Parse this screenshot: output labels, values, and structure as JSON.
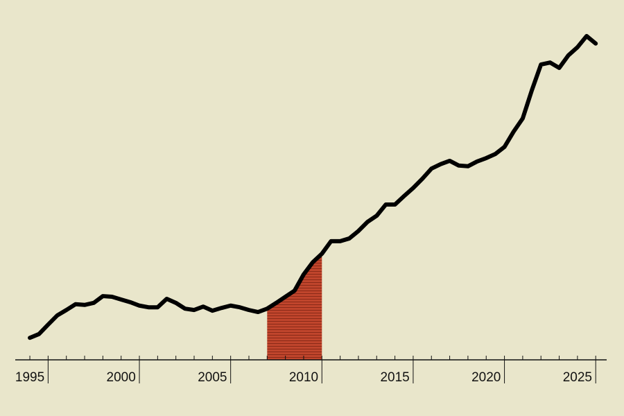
{
  "chart_data": {
    "type": "line",
    "x": [
      1995.0,
      1995.5,
      1996.0,
      1996.5,
      1997.0,
      1997.5,
      1998.0,
      1998.5,
      1999.0,
      1999.5,
      2000.0,
      2000.5,
      2001.0,
      2001.5,
      2002.0,
      2002.5,
      2003.0,
      2003.5,
      2004.0,
      2004.5,
      2005.0,
      2005.5,
      2006.0,
      2006.5,
      2007.0,
      2007.5,
      2008.0,
      2008.5,
      2009.0,
      2009.5,
      2010.0,
      2010.5,
      2011.0,
      2011.5,
      2012.0,
      2012.5,
      2013.0,
      2013.5,
      2014.0,
      2014.5,
      2015.0,
      2015.5,
      2016.0,
      2016.5,
      2017.0,
      2017.5,
      2018.0,
      2018.5,
      2019.0,
      2019.5,
      2020.0,
      2020.5,
      2021.0,
      2021.5,
      2022.0,
      2022.5,
      2023.0,
      2023.5,
      2024.0,
      2024.5,
      2025.0,
      2025.5,
      2026.0
    ],
    "series": [
      {
        "color": "#000000",
        "values": [
          6.5,
          7.6,
          10.4,
          13.1,
          14.7,
          16.4,
          16.2,
          16.8,
          18.8,
          18.6,
          17.8,
          17.0,
          16.0,
          15.5,
          15.5,
          18.0,
          16.8,
          15.1,
          14.7,
          15.7,
          14.5,
          15.3,
          16.0,
          15.5,
          14.7,
          14.1,
          15.1,
          16.8,
          18.6,
          20.4,
          25.2,
          28.8,
          31.3,
          35.0,
          35.0,
          35.8,
          38.0,
          40.7,
          42.5,
          45.8,
          45.8,
          48.3,
          50.7,
          53.4,
          56.4,
          57.7,
          58.7,
          57.3,
          57.1,
          58.5,
          59.5,
          60.7,
          62.8,
          67.3,
          71.2,
          79.5,
          87.1,
          87.7,
          86.1,
          89.8,
          92.2,
          95.5,
          93.3
        ]
      }
    ],
    "highlight": [
      2008,
      2011
    ],
    "highlight_color": "#c0452c",
    "xlim": [
      1994.2,
      2026.6
    ],
    "ylim": [
      0,
      100
    ],
    "xticks": [
      1995,
      2000,
      2005,
      2010,
      2015,
      2020,
      2025
    ],
    "major_xticks": [
      1996,
      2001,
      2006,
      2011,
      2016,
      2021,
      2026
    ],
    "minor_xticks": [
      1995,
      1996,
      1997,
      1998,
      1999,
      2000,
      2001,
      2002,
      2003,
      2004,
      2005,
      2006,
      2007,
      2008,
      2009,
      2010,
      2011,
      2012,
      2013,
      2014,
      2015,
      2016,
      2017,
      2018,
      2019,
      2020,
      2021,
      2022,
      2023,
      2024,
      2025,
      2026
    ]
  }
}
